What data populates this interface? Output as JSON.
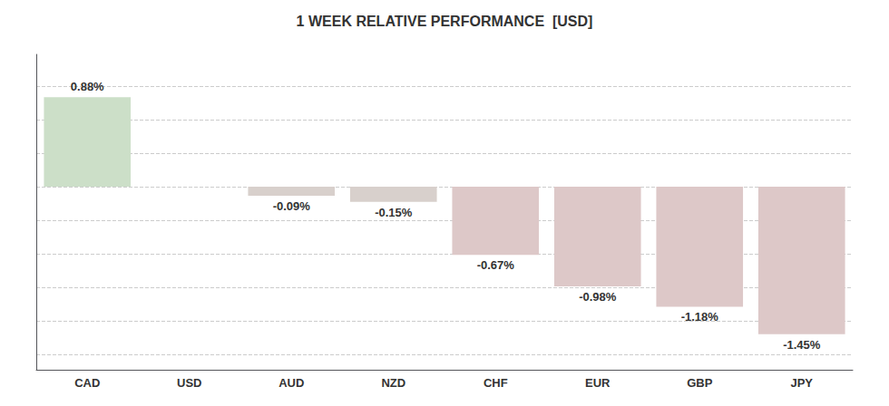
{
  "chart_data": {
    "type": "bar",
    "title": "1 WEEK RELATIVE PERFORMANCE  [USD]",
    "categories": [
      "CAD",
      "USD",
      "AUD",
      "NZD",
      "CHF",
      "EUR",
      "GBP",
      "JPY"
    ],
    "values": [
      0.88,
      0.0,
      -0.09,
      -0.15,
      -0.67,
      -0.98,
      -1.18,
      -1.45
    ],
    "value_labels": [
      "0.88%",
      null,
      "-0.09%",
      "-0.15%",
      "-0.67%",
      "-0.98%",
      "-1.18%",
      "-1.45%"
    ],
    "colors": [
      "#ccdfc8",
      "#ffffff",
      "#d8d0cc",
      "#d8d0cc",
      "#ddc8c8",
      "#ddc8c8",
      "#ddc8c8",
      "#ddc8c8"
    ],
    "ylim": [
      -1.8,
      1.3
    ],
    "yticks": [
      -1.65,
      -1.32,
      -0.99,
      -0.66,
      -0.33,
      0,
      0.33,
      0.66,
      0.99
    ],
    "grid": true,
    "data_labels": true,
    "tick_labels": "x"
  }
}
